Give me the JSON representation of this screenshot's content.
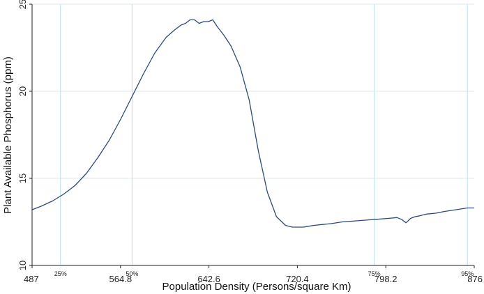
{
  "chart_data": {
    "type": "line",
    "xlabel": "Population Density (Persons/square Km)",
    "ylabel": "Plant Available Phosphorus (ppm)",
    "xlim": [
      487,
      876
    ],
    "ylim": [
      10,
      25
    ],
    "x_ticks": [
      "487",
      "564.8",
      "642.6",
      "720.4",
      "798.2",
      "876"
    ],
    "y_ticks": [
      "10",
      "15",
      "20",
      "25"
    ],
    "percentile_lines": [
      {
        "label": "25%",
        "x": 512
      },
      {
        "label": "50%",
        "x": 575
      },
      {
        "label": "75%",
        "x": 788
      },
      {
        "label": "95%",
        "x": 870
      }
    ],
    "grid": true,
    "series": [
      {
        "color": "#2e4a7a",
        "x": [
          487,
          495,
          505,
          515,
          525,
          535,
          545,
          555,
          565,
          575,
          585,
          595,
          605,
          612,
          618,
          622,
          626,
          630,
          634,
          638,
          642,
          646,
          650,
          656,
          662,
          670,
          678,
          686,
          694,
          702,
          710,
          716,
          722,
          726,
          730,
          735,
          742,
          750,
          760,
          770,
          780,
          790,
          800,
          808,
          812,
          816,
          820,
          824,
          828,
          834,
          842,
          850,
          860,
          870,
          876
        ],
        "y": [
          13.2,
          13.4,
          13.7,
          14.1,
          14.6,
          15.3,
          16.2,
          17.2,
          18.4,
          19.7,
          21.0,
          22.2,
          23.1,
          23.5,
          23.8,
          23.9,
          24.1,
          24.1,
          23.9,
          24.0,
          24.0,
          24.1,
          23.7,
          23.2,
          22.6,
          21.4,
          19.5,
          16.6,
          14.2,
          12.8,
          12.3,
          12.2,
          12.2,
          12.2,
          12.25,
          12.3,
          12.35,
          12.4,
          12.5,
          12.55,
          12.6,
          12.65,
          12.7,
          12.75,
          12.65,
          12.45,
          12.7,
          12.8,
          12.85,
          12.95,
          13.0,
          13.1,
          13.2,
          13.3,
          13.3
        ]
      }
    ]
  }
}
